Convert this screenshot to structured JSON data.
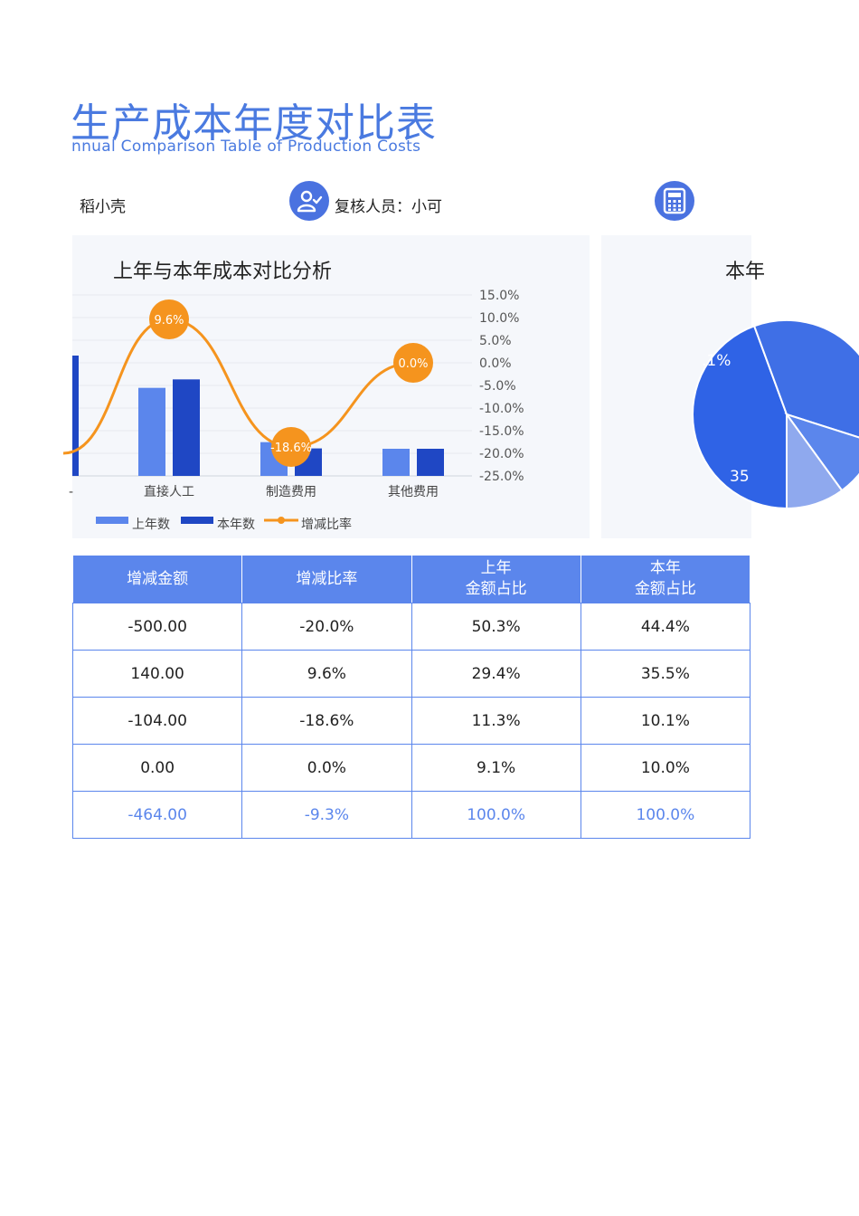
{
  "header": {
    "title": "生产成本年度对比表",
    "subtitle": "nnual Comparison Table of Production Costs"
  },
  "people": {
    "maker": "稻小壳",
    "reviewer": "复核人员：小可"
  },
  "bar_panel": {
    "title": "上年与本年成本对比分析"
  },
  "pie_panel": {
    "title": "本年"
  },
  "chart_data": [
    {
      "type": "bar",
      "title": "上年与本年成本对比分析",
      "categories": [
        "直接人工",
        "制造费用",
        "其他费用"
      ],
      "series": [
        {
          "name": "上年数",
          "values": [
            1460,
            560,
            450
          ],
          "color": "#5b86ec"
        },
        {
          "name": "本年数",
          "values": [
            1600,
            456,
            450
          ],
          "color": "#1f47c4"
        },
        {
          "name": "增减比率",
          "values": [
            9.6,
            -18.6,
            0.0
          ],
          "axis": "right",
          "type": "line",
          "color": "#f5941e"
        }
      ],
      "point_labels": [
        "9.6%",
        "-18.6%",
        "0.0%"
      ],
      "right_axis_ticks": [
        "15.0%",
        "10.0%",
        "5.0%",
        "0.0%",
        "-5.0%",
        "-10.0%",
        "-15.0%",
        "-20.0%",
        "-25.0%"
      ],
      "ylim_right": [
        -25,
        15
      ],
      "ylim_left": [
        0,
        3000
      ],
      "legend": [
        "上年数",
        "本年数",
        "增减比率"
      ],
      "legend_position": "bottom-left",
      "grid": true
    },
    {
      "type": "pie",
      "title": "本年",
      "visible_labels": [
        ".1%",
        "35"
      ],
      "slices": [
        {
          "value": 44.4,
          "color": "#2f63e6"
        },
        {
          "value": 35.5,
          "color": "#3f6fe6"
        },
        {
          "value": 10.1,
          "color": "#5b86ec"
        },
        {
          "value": 10.0,
          "color": "#8fa9ee"
        }
      ]
    }
  ],
  "table": {
    "headers": [
      [
        "增减金额"
      ],
      [
        "增减比率"
      ],
      [
        "上年",
        "金额占比"
      ],
      [
        "本年",
        "金额占比"
      ]
    ],
    "rows": [
      [
        "-500.00",
        "-20.0%",
        "50.3%",
        "44.4%"
      ],
      [
        "140.00",
        "9.6%",
        "29.4%",
        "35.5%"
      ],
      [
        "-104.00",
        "-18.6%",
        "11.3%",
        "10.1%"
      ],
      [
        "0.00",
        "0.0%",
        "9.1%",
        "10.0%"
      ]
    ],
    "total": [
      "-464.00",
      "-9.3%",
      "100.0%",
      "100.0%"
    ]
  },
  "icons": [
    "user-check-icon",
    "calculator-icon"
  ],
  "colors": {
    "accent": "#4a7ae0",
    "table_header": "#5b86ec",
    "line": "#f5941e"
  }
}
